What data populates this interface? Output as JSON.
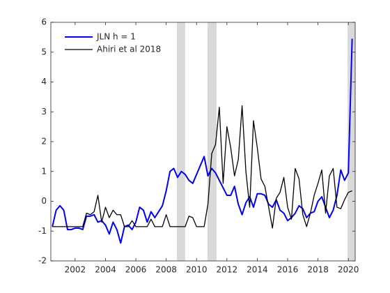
{
  "chart_data": {
    "type": "line",
    "x": [
      2000.5,
      2000.75,
      2001,
      2001.25,
      2001.5,
      2001.75,
      2002,
      2002.25,
      2002.5,
      2002.75,
      2003,
      2003.25,
      2003.5,
      2003.75,
      2004,
      2004.25,
      2004.5,
      2004.75,
      2005,
      2005.25,
      2005.5,
      2005.75,
      2006,
      2006.25,
      2006.5,
      2006.75,
      2007,
      2007.25,
      2007.5,
      2007.75,
      2008,
      2008.25,
      2008.5,
      2008.75,
      2009,
      2009.25,
      2009.5,
      2009.75,
      2010,
      2010.25,
      2010.5,
      2010.75,
      2011,
      2011.25,
      2011.5,
      2011.75,
      2012,
      2012.25,
      2012.5,
      2012.75,
      2013,
      2013.25,
      2013.5,
      2013.75,
      2014,
      2014.25,
      2014.5,
      2014.75,
      2015,
      2015.25,
      2015.5,
      2015.75,
      2016,
      2016.25,
      2016.5,
      2016.75,
      2017,
      2017.25,
      2017.5,
      2017.75,
      2018,
      2018.25,
      2018.5,
      2018.75,
      2019,
      2019.25,
      2019.5,
      2019.75,
      2020,
      2020.25
    ],
    "series": [
      {
        "name": "JLN h = 1",
        "color": "#0000ff",
        "width": 2,
        "values": [
          -0.85,
          -0.3,
          -0.15,
          -0.3,
          -0.95,
          -0.95,
          -0.9,
          -0.9,
          -0.95,
          -0.5,
          -0.5,
          -0.45,
          -0.7,
          -0.65,
          -0.8,
          -1.1,
          -0.7,
          -0.95,
          -1.4,
          -0.85,
          -0.8,
          -0.95,
          -0.7,
          -0.2,
          -0.3,
          -0.7,
          -0.35,
          -0.55,
          -0.35,
          -0.15,
          0.35,
          1.0,
          1.1,
          0.8,
          1.0,
          0.9,
          0.7,
          0.6,
          0.9,
          1.2,
          1.5,
          0.85,
          1.1,
          0.95,
          0.7,
          0.45,
          0.2,
          0.2,
          0.5,
          -0.1,
          -0.45,
          -0.05,
          0.15,
          -0.2,
          0.25,
          0.25,
          0.2,
          -0.1,
          -0.2,
          0.05,
          -0.3,
          -0.4,
          -0.65,
          -0.55,
          -0.4,
          -0.15,
          -0.25,
          -0.55,
          -0.4,
          -0.35,
          0.0,
          0.15,
          -0.2,
          -0.55,
          -0.3,
          0.2,
          1.05,
          0.7,
          0.95,
          5.45
        ]
      },
      {
        "name": "Ahiri et al 2018",
        "color": "#000000",
        "width": 1.3,
        "values": [
          -0.85,
          -0.85,
          -0.85,
          -0.85,
          -0.85,
          -0.85,
          -0.85,
          -0.85,
          -0.85,
          -0.4,
          -0.45,
          -0.35,
          0.2,
          -0.7,
          -0.2,
          -0.55,
          -0.3,
          -0.45,
          -0.45,
          -0.85,
          -0.85,
          -0.65,
          -0.85,
          -0.85,
          -0.85,
          -0.85,
          -0.6,
          -0.85,
          -0.85,
          -0.85,
          -0.45,
          -0.85,
          -0.85,
          -0.85,
          -0.85,
          -0.85,
          -0.5,
          -0.55,
          -0.85,
          -0.85,
          -0.85,
          -0.1,
          1.6,
          1.9,
          3.15,
          0.6,
          2.5,
          1.8,
          0.85,
          1.4,
          3.2,
          1.0,
          -0.2,
          2.7,
          1.8,
          0.75,
          0.5,
          -0.2,
          -0.9,
          0.1,
          0.3,
          0.8,
          -0.2,
          -0.6,
          1.1,
          0.75,
          -0.45,
          -0.85,
          -0.4,
          0.2,
          0.6,
          1.05,
          -0.4,
          0.85,
          1.1,
          -0.2,
          -0.25,
          0.05,
          0.3,
          0.35
        ]
      }
    ],
    "shaded_regions": [
      [
        2008.7,
        2009.25
      ],
      [
        2010.72,
        2011.32
      ],
      [
        2019.95,
        2020.45
      ]
    ],
    "shade_color": "#d9d9d9",
    "xlim": [
      2000.4,
      2020.45
    ],
    "ylim": [
      -2,
      6
    ],
    "xticks": [
      2002,
      2004,
      2006,
      2008,
      2010,
      2012,
      2014,
      2016,
      2018,
      2020
    ],
    "yticks": [
      -2,
      -1,
      0,
      1,
      2,
      3,
      4,
      5,
      6
    ],
    "legend": "upper left"
  }
}
